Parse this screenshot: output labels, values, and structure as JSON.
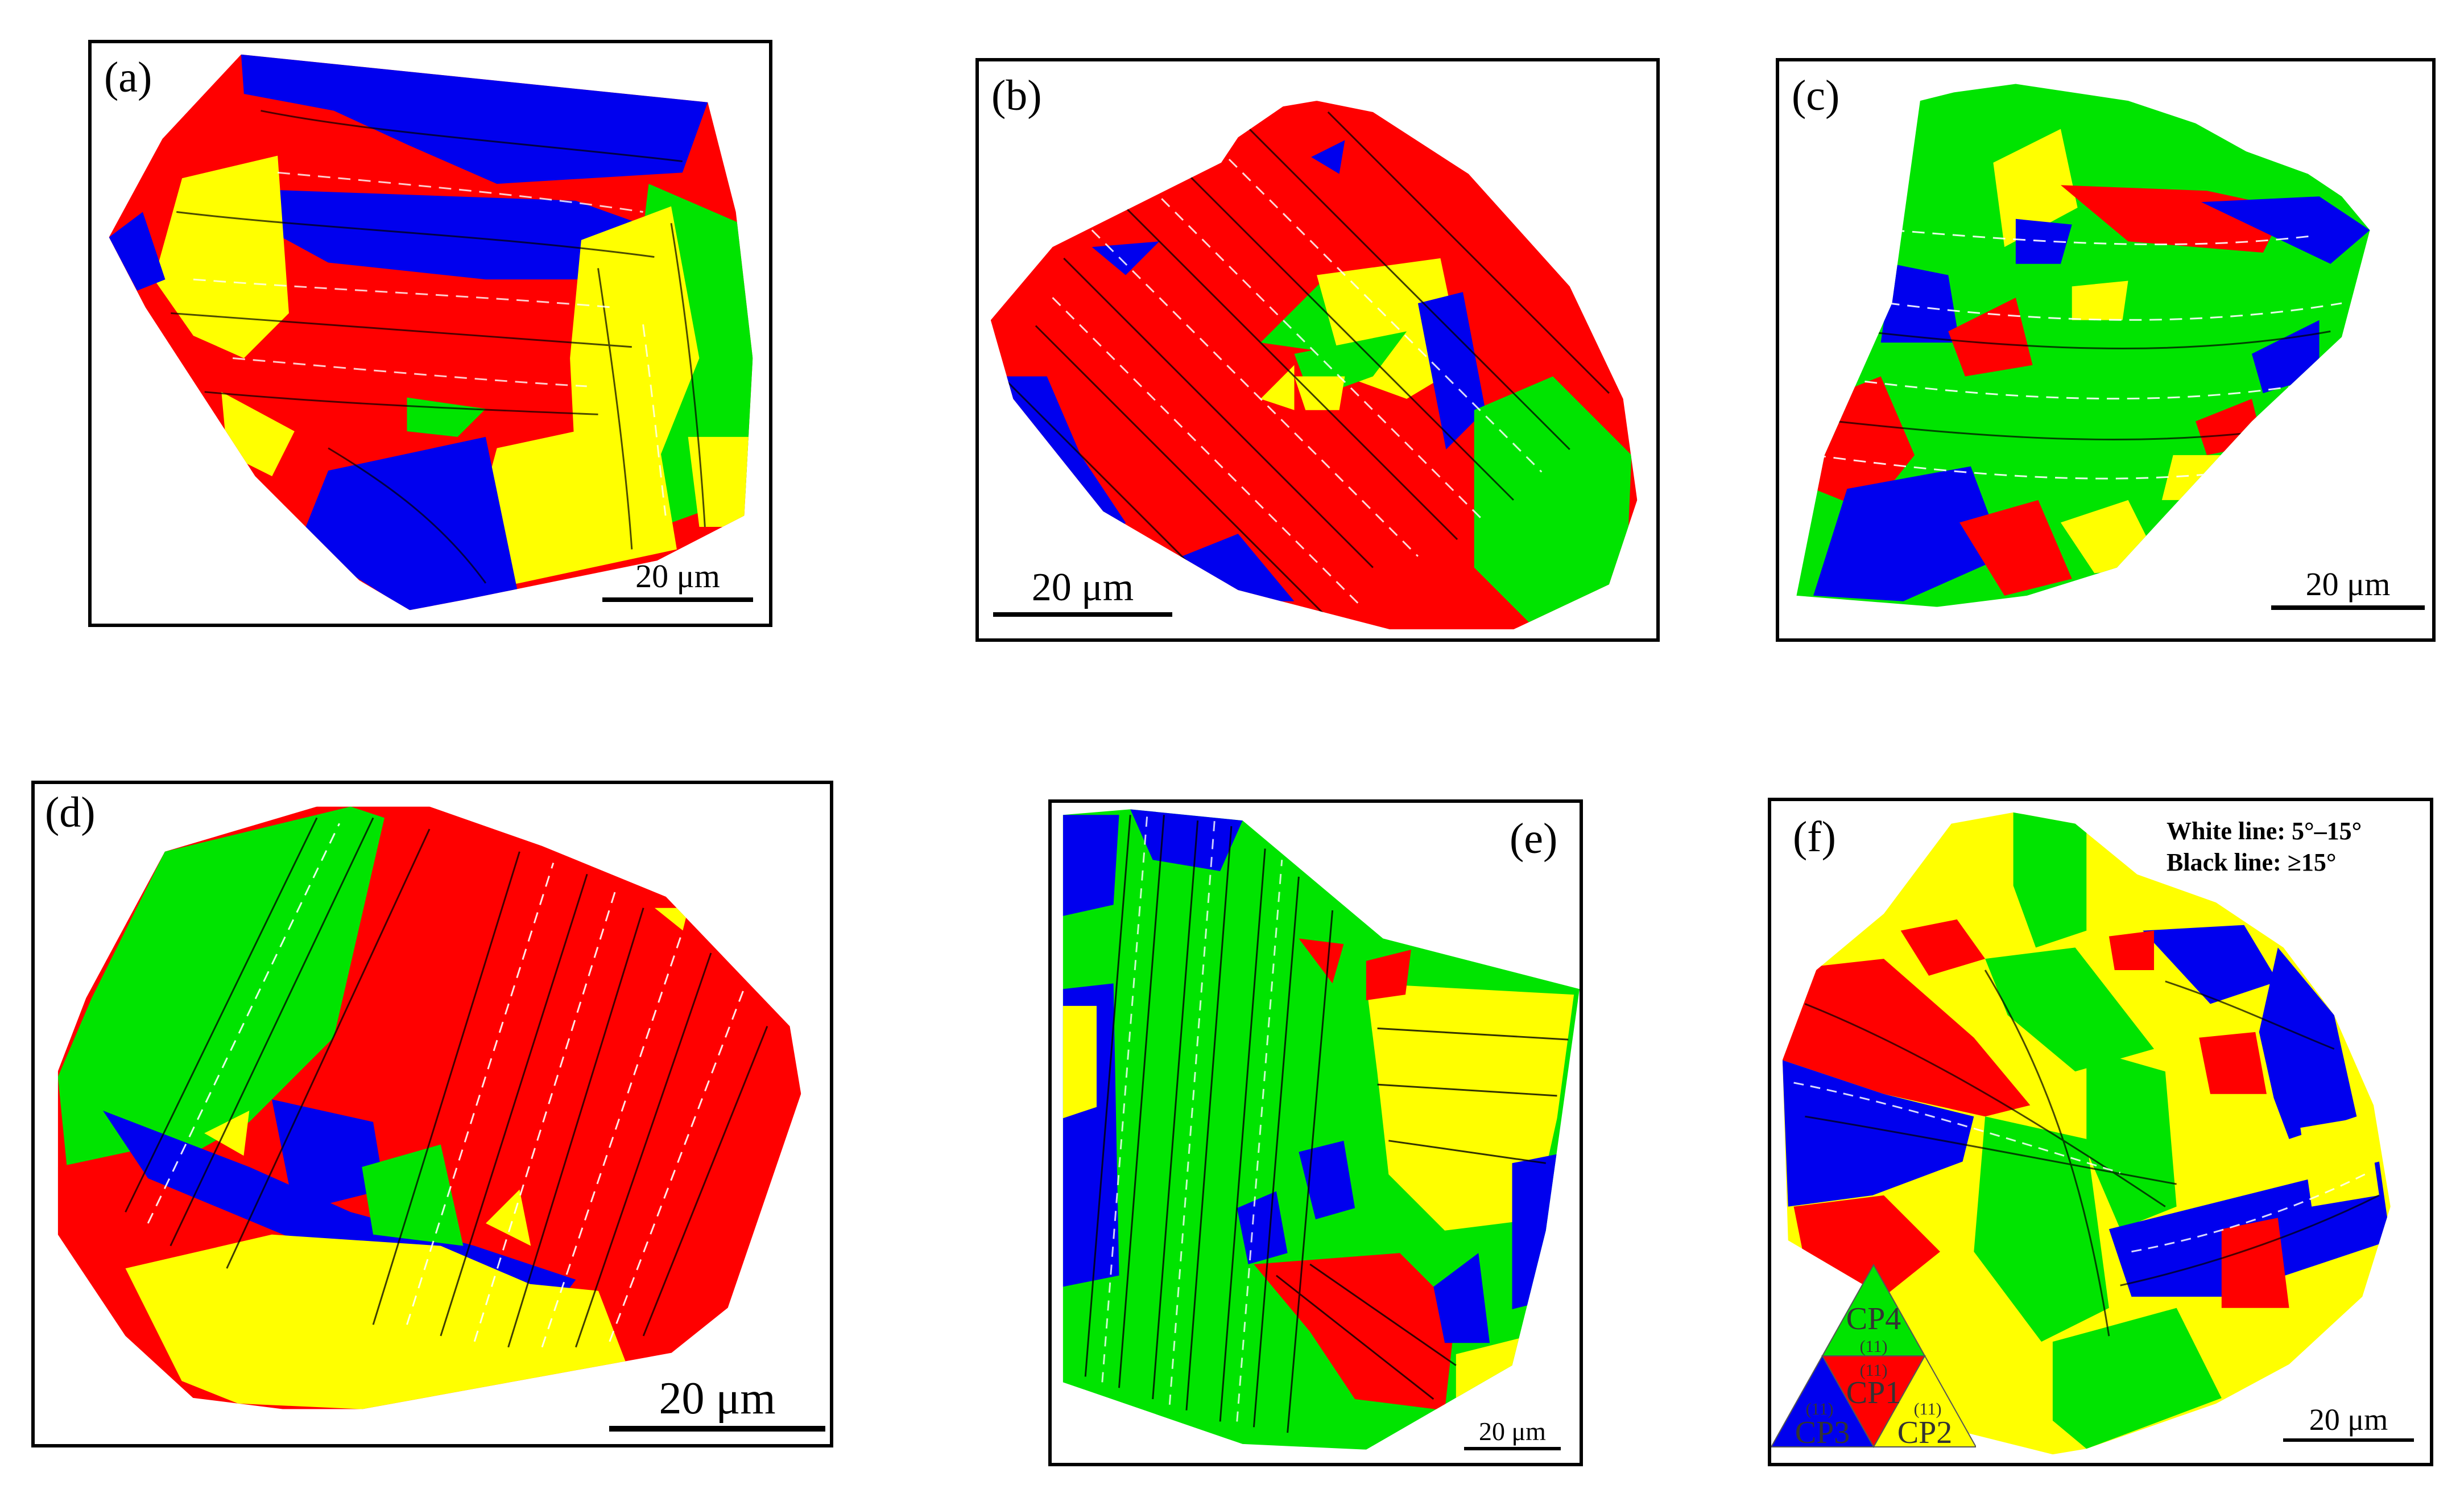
{
  "colors": {
    "red": "#ff0000",
    "green": "#00e400",
    "blue": "#0000ee",
    "yellow": "#ffff00"
  },
  "panels": [
    {
      "label": "(a)",
      "scale": "20 μm"
    },
    {
      "label": "(b)",
      "scale": "20 μm"
    },
    {
      "label": "(c)",
      "scale": "20 μm"
    },
    {
      "label": "(d)",
      "scale": "20 μm"
    },
    {
      "label": "(e)",
      "scale": "20 μm"
    },
    {
      "label": "(f)",
      "scale": "20 μm"
    }
  ],
  "legend": {
    "white_line": "White line: 5°–15°",
    "black_line": "Black line: ≥15°",
    "variants": [
      "CP4",
      "CP1",
      "CP3",
      "CP2"
    ],
    "planes": [
      "(11)",
      "(11)",
      "(11)",
      "(11)"
    ]
  }
}
